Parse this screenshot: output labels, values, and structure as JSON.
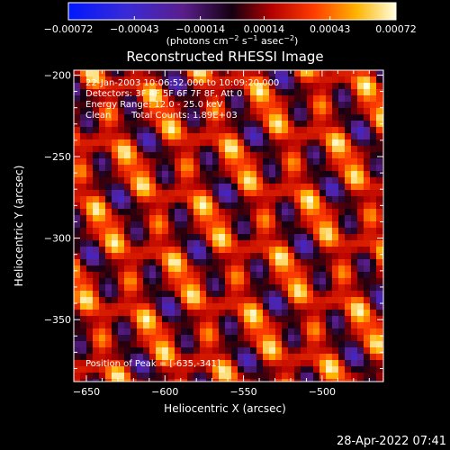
{
  "chart_data": {
    "type": "heatmap",
    "title": "Reconstructed RHESSI Image",
    "xlabel": "Heliocentric X (arcsec)",
    "ylabel": "Heliocentric Y (arcsec)",
    "xlim": [
      -658,
      -461
    ],
    "ylim": [
      -388,
      -197
    ],
    "x_ticks": [
      {
        "value": -650,
        "label": "−650"
      },
      {
        "value": -600,
        "label": "−600"
      },
      {
        "value": -550,
        "label": "−550"
      },
      {
        "value": -500,
        "label": "−500"
      }
    ],
    "y_ticks": [
      {
        "value": -200,
        "label": "−200"
      },
      {
        "value": -250,
        "label": "−250"
      },
      {
        "value": -300,
        "label": "−300"
      },
      {
        "value": -350,
        "label": "−350"
      }
    ],
    "colorbar": {
      "min": -0.00072,
      "max": 0.00072,
      "ticks": [
        {
          "value": -0.00072,
          "label": "−0.00072"
        },
        {
          "value": -0.00043,
          "label": "−0.00043"
        },
        {
          "value": -0.00014,
          "label": "−0.00014"
        },
        {
          "value": 0.00014,
          "label": "0.00014"
        },
        {
          "value": 0.00043,
          "label": "0.00043"
        },
        {
          "value": 0.00072,
          "label": "0.00072"
        }
      ],
      "unit_main": "(photons cm",
      "unit_exp1": "−2",
      "unit_mid": " s",
      "unit_exp2": "−1",
      "unit_mid2": " asec",
      "unit_exp3": "−2",
      "unit_end": ")"
    },
    "annotations": {
      "time_range": "22-Jan-2003 10:06:52.000 to 10:09:20.000",
      "detectors": "Detectors: 3F 4F 5F 6F 7F 8F, Att 0",
      "energy_range": "Energy Range: 12.0 - 25.0 keV",
      "method": "Clean",
      "total_counts": "Total Counts: 1.89E+03",
      "peak_position": "Position of Peak = [-635,-341]"
    }
  },
  "footer": {
    "timestamp": "28-Apr-2022 07:41"
  }
}
